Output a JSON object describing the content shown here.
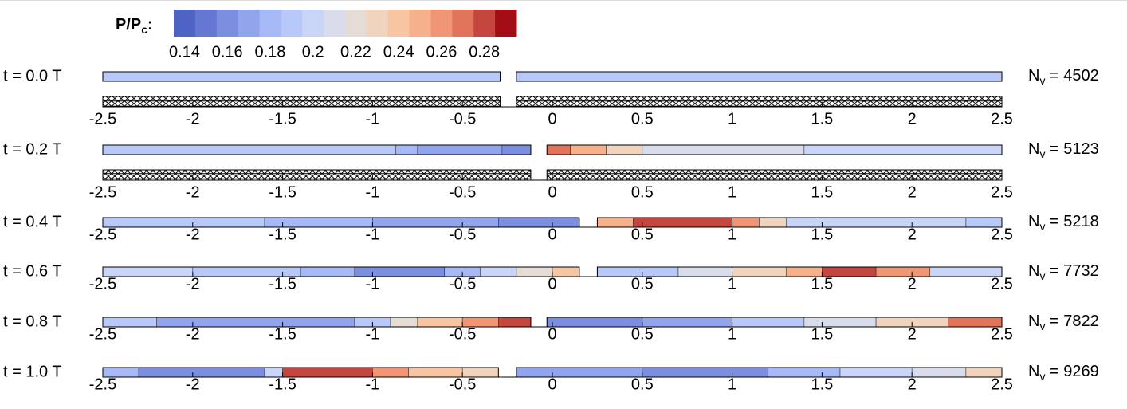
{
  "chart_data": {
    "type": "strip-contour",
    "colorbar": {
      "label": "P/P",
      "label_subscript": "c",
      "label_suffix": ":",
      "range": [
        0.135,
        0.295
      ],
      "ticks": [
        0.14,
        0.16,
        0.18,
        0.2,
        0.22,
        0.24,
        0.26,
        0.28
      ],
      "colors": [
        "#4e63c3",
        "#6577d3",
        "#7c8edf",
        "#92a4ec",
        "#a6b8f5",
        "#b8c8f9",
        "#c8d5f6",
        "#d8dceb",
        "#e5dcd5",
        "#f1d4bd",
        "#f8c5a3",
        "#f6b08b",
        "#f09674",
        "#e0755b",
        "#c5463e",
        "#a30d16"
      ]
    },
    "xlim": [
      -2.5,
      2.5
    ],
    "xticks": [
      -2.5,
      -2,
      -1.5,
      -1,
      -0.5,
      0,
      0.5,
      1,
      1.5,
      2,
      2.5
    ],
    "rows": [
      {
        "time_label": "t = 0.0 T",
        "nv_symbol": "N",
        "nv_subscript": "v",
        "nv_text": " = 4502",
        "mesh": true,
        "bodies": [
          {
            "segments": [
              {
                "x": [
                  -2.5,
                  -0.29
                ],
                "value": 0.19
              }
            ]
          },
          {
            "segments": [
              {
                "x": [
                  -0.2,
                  2.5
                ],
                "value": 0.19
              }
            ]
          }
        ]
      },
      {
        "time_label": "t = 0.2 T",
        "nv_symbol": "N",
        "nv_subscript": "v",
        "nv_text": " = 5123",
        "mesh": true,
        "bodies": [
          {
            "segments": [
              {
                "x": [
                  -2.5,
                  -0.87
                ],
                "value": 0.19
              },
              {
                "x": [
                  -0.87,
                  -0.75
                ],
                "value": 0.18
              },
              {
                "x": [
                  -0.75,
                  -0.28
                ],
                "value": 0.17
              },
              {
                "x": [
                  -0.28,
                  -0.12
                ],
                "value": 0.16
              }
            ]
          },
          {
            "segments": [
              {
                "x": [
                  -0.03,
                  0.1
                ],
                "value": 0.27
              },
              {
                "x": [
                  0.1,
                  0.3
                ],
                "value": 0.25
              },
              {
                "x": [
                  0.3,
                  0.5
                ],
                "value": 0.23
              },
              {
                "x": [
                  0.5,
                  1.4
                ],
                "value": 0.21
              },
              {
                "x": [
                  1.4,
                  2.5
                ],
                "value": 0.2
              }
            ]
          }
        ]
      },
      {
        "time_label": "t = 0.4 T",
        "nv_symbol": "N",
        "nv_subscript": "v",
        "nv_text": " = 5218",
        "mesh": false,
        "bodies": [
          {
            "segments": [
              {
                "x": [
                  -2.5,
                  -1.6
                ],
                "value": 0.19
              },
              {
                "x": [
                  -1.6,
                  -1.0
                ],
                "value": 0.18
              },
              {
                "x": [
                  -1.0,
                  -0.3
                ],
                "value": 0.17
              },
              {
                "x": [
                  -0.3,
                  0.15
                ],
                "value": 0.16
              }
            ]
          },
          {
            "segments": [
              {
                "x": [
                  0.25,
                  0.45
                ],
                "value": 0.25
              },
              {
                "x": [
                  0.45,
                  1.0
                ],
                "value": 0.28
              },
              {
                "x": [
                  1.0,
                  1.15
                ],
                "value": 0.26
              },
              {
                "x": [
                  1.15,
                  1.3
                ],
                "value": 0.23
              },
              {
                "x": [
                  1.3,
                  2.3
                ],
                "value": 0.2
              },
              {
                "x": [
                  2.3,
                  2.5
                ],
                "value": 0.19
              }
            ]
          }
        ]
      },
      {
        "time_label": "t = 0.6 T",
        "nv_symbol": "N",
        "nv_subscript": "v",
        "nv_text": " = 7732",
        "mesh": false,
        "bodies": [
          {
            "segments": [
              {
                "x": [
                  -2.5,
                  -2.0
                ],
                "value": 0.2
              },
              {
                "x": [
                  -2.0,
                  -1.4
                ],
                "value": 0.19
              },
              {
                "x": [
                  -1.4,
                  -1.1
                ],
                "value": 0.18
              },
              {
                "x": [
                  -1.1,
                  -0.6
                ],
                "value": 0.16
              },
              {
                "x": [
                  -0.6,
                  -0.4
                ],
                "value": 0.18
              },
              {
                "x": [
                  -0.4,
                  -0.2
                ],
                "value": 0.2
              },
              {
                "x": [
                  -0.2,
                  0.0
                ],
                "value": 0.22
              },
              {
                "x": [
                  0.0,
                  0.15
                ],
                "value": 0.24
              }
            ]
          },
          {
            "segments": [
              {
                "x": [
                  0.25,
                  0.7
                ],
                "value": 0.19
              },
              {
                "x": [
                  0.7,
                  1.0
                ],
                "value": 0.21
              },
              {
                "x": [
                  1.0,
                  1.3
                ],
                "value": 0.23
              },
              {
                "x": [
                  1.3,
                  1.5
                ],
                "value": 0.25
              },
              {
                "x": [
                  1.5,
                  1.8
                ],
                "value": 0.28
              },
              {
                "x": [
                  1.8,
                  2.1
                ],
                "value": 0.26
              },
              {
                "x": [
                  2.1,
                  2.5
                ],
                "value": 0.2
              }
            ]
          }
        ]
      },
      {
        "time_label": "t = 0.8 T",
        "nv_symbol": "N",
        "nv_subscript": "v",
        "nv_text": " = 7822",
        "mesh": false,
        "bodies": [
          {
            "segments": [
              {
                "x": [
                  -2.5,
                  -2.2
                ],
                "value": 0.19
              },
              {
                "x": [
                  -2.2,
                  -1.1
                ],
                "value": 0.17
              },
              {
                "x": [
                  -1.1,
                  -0.9
                ],
                "value": 0.19
              },
              {
                "x": [
                  -0.9,
                  -0.75
                ],
                "value": 0.22
              },
              {
                "x": [
                  -0.75,
                  -0.5
                ],
                "value": 0.24
              },
              {
                "x": [
                  -0.5,
                  -0.3
                ],
                "value": 0.26
              },
              {
                "x": [
                  -0.3,
                  -0.12
                ],
                "value": 0.28
              }
            ]
          },
          {
            "segments": [
              {
                "x": [
                  -0.03,
                  0.5
                ],
                "value": 0.16
              },
              {
                "x": [
                  0.5,
                  1.0
                ],
                "value": 0.17
              },
              {
                "x": [
                  1.0,
                  1.4
                ],
                "value": 0.19
              },
              {
                "x": [
                  1.4,
                  1.8
                ],
                "value": 0.21
              },
              {
                "x": [
                  1.8,
                  2.2
                ],
                "value": 0.23
              },
              {
                "x": [
                  2.2,
                  2.5
                ],
                "value": 0.27
              }
            ]
          }
        ]
      },
      {
        "time_label": "t = 1.0 T",
        "nv_symbol": "N",
        "nv_subscript": "v",
        "nv_text": " = 9269",
        "mesh": false,
        "bodies": [
          {
            "segments": [
              {
                "x": [
                  -2.5,
                  -2.3
                ],
                "value": 0.18
              },
              {
                "x": [
                  -2.3,
                  -1.6
                ],
                "value": 0.16
              },
              {
                "x": [
                  -1.6,
                  -1.5
                ],
                "value": 0.2
              },
              {
                "x": [
                  -1.5,
                  -1.0
                ],
                "value": 0.28
              },
              {
                "x": [
                  -1.0,
                  -0.8
                ],
                "value": 0.26
              },
              {
                "x": [
                  -0.8,
                  -0.5
                ],
                "value": 0.24
              },
              {
                "x": [
                  -0.5,
                  -0.3
                ],
                "value": 0.23
              }
            ]
          },
          {
            "segments": [
              {
                "x": [
                  -0.2,
                  0.5
                ],
                "value": 0.17
              },
              {
                "x": [
                  0.5,
                  1.2
                ],
                "value": 0.16
              },
              {
                "x": [
                  1.2,
                  1.6
                ],
                "value": 0.18
              },
              {
                "x": [
                  1.6,
                  2.0
                ],
                "value": 0.2
              },
              {
                "x": [
                  2.0,
                  2.3
                ],
                "value": 0.21
              },
              {
                "x": [
                  2.3,
                  2.5
                ],
                "value": 0.23
              }
            ]
          }
        ]
      }
    ]
  }
}
